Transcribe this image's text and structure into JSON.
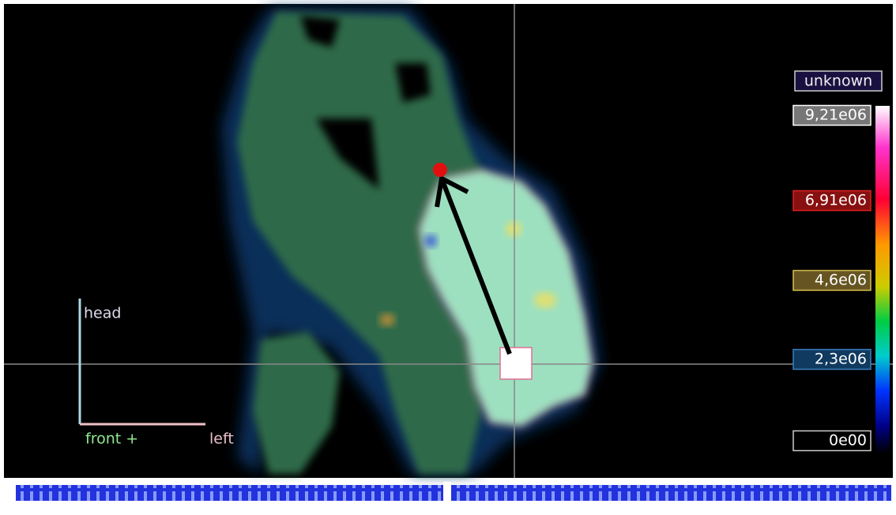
{
  "colorbar": {
    "unit": "unknown",
    "labels": [
      "9,21e06",
      "6,91e06",
      "4,6e06",
      "2,3e06",
      "0e00"
    ]
  },
  "orientation": {
    "up": "head",
    "right_start": "front +",
    "right_end": "left"
  }
}
